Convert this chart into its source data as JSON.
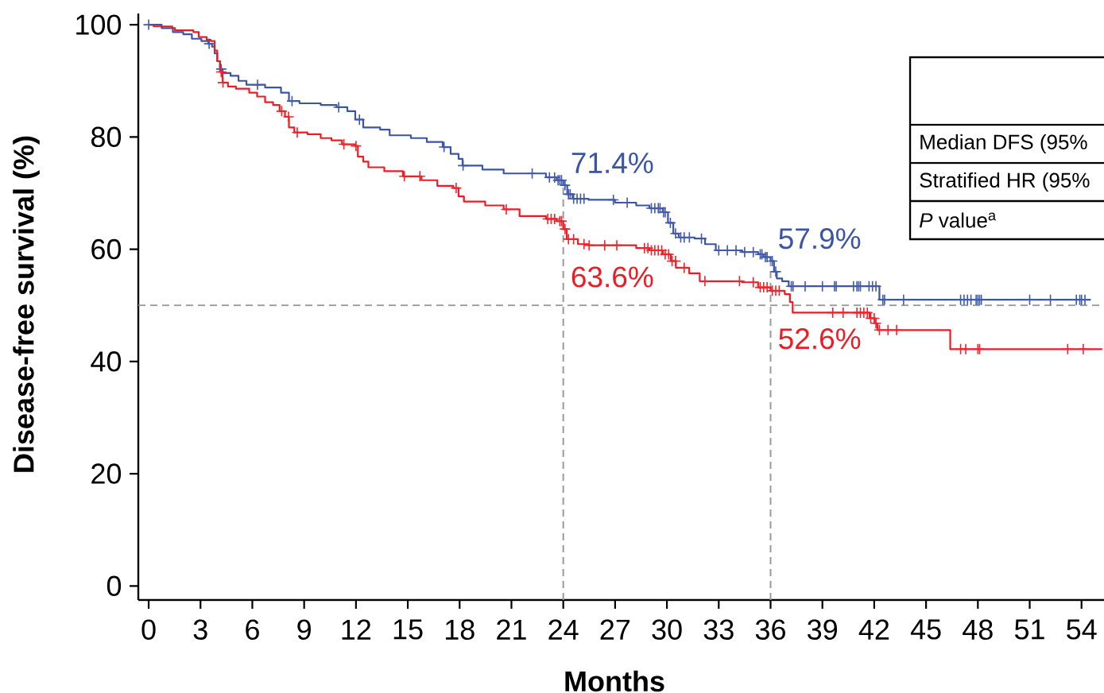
{
  "chart_data": {
    "type": "step",
    "xlabel": "Months",
    "ylabel": "Disease-free survival (%)",
    "xlim": [
      -0.6,
      55.3
    ],
    "ylim": [
      -2.5,
      102
    ],
    "xticks": [
      0,
      3,
      6,
      9,
      12,
      15,
      18,
      21,
      24,
      27,
      30,
      33,
      36,
      39,
      42,
      45,
      48,
      51,
      54
    ],
    "yticks": [
      0,
      20,
      40,
      60,
      80,
      100
    ],
    "series": [
      {
        "color": "#3b54a4",
        "marker": "none",
        "x": [
          0,
          0.75,
          1.4,
          2.0,
          2.5,
          3.05,
          3.45,
          3.67,
          3.82,
          3.97,
          4.13,
          4.28,
          4.74,
          5.2,
          5.66,
          6.74,
          7.66,
          8.12,
          8.73,
          9.96,
          10.88,
          11.5,
          11.96,
          12.42,
          13.4,
          13.95,
          15.18,
          16.1,
          17.02,
          17.48,
          17.94,
          18.17,
          19.32,
          20.55,
          23.0,
          23.62,
          24,
          24.23,
          24.54,
          25.46,
          26.99,
          28.22,
          28.99,
          29.76,
          30.06,
          30.37,
          30.68,
          31.6,
          32.21,
          32.83,
          34.36,
          35.28,
          35.59,
          36,
          36.2,
          36.36,
          36.67,
          37.05,
          42.3,
          54.54
        ],
        "values": [
          100,
          99.4,
          98.7,
          98.3,
          97.5,
          97.1,
          96.6,
          96.1,
          94.9,
          93.5,
          92.1,
          91.4,
          90.9,
          90.0,
          89.3,
          88.8,
          87.9,
          86.4,
          86.0,
          85.7,
          85.3,
          84.6,
          83.1,
          81.7,
          81.3,
          80.3,
          79.8,
          79.1,
          78.2,
          77.0,
          76.1,
          74.9,
          74.2,
          73.5,
          72.8,
          72.3,
          71.4,
          69.8,
          69.0,
          68.8,
          68.3,
          67.8,
          67.3,
          66.6,
          64.7,
          62.8,
          62.1,
          61.9,
          60.9,
          59.8,
          59.5,
          59.1,
          58.6,
          57.9,
          56.0,
          54.8,
          54.3,
          53.4,
          51.0,
          51.0
        ],
        "value_labels": [
          null,
          null,
          null,
          null,
          null,
          null,
          null,
          null,
          null,
          null,
          null,
          null,
          null,
          null,
          null,
          null,
          null,
          null,
          null,
          null,
          null,
          null,
          null,
          null,
          null,
          null,
          null,
          null,
          null,
          null,
          null,
          null,
          null,
          null,
          null,
          null,
          "71.4%",
          null,
          null,
          null,
          null,
          null,
          null,
          null,
          null,
          null,
          null,
          null,
          null,
          null,
          null,
          null,
          null,
          "57.9%",
          null,
          null,
          null,
          null,
          null,
          null
        ]
      },
      {
        "color": "#ed1c24",
        "marker": "none",
        "x": [
          0,
          0.29,
          1.37,
          1.52,
          2.59,
          2.9,
          3.36,
          3.59,
          3.82,
          3.97,
          4.13,
          4.28,
          4.59,
          5.05,
          5.82,
          6.28,
          6.74,
          7.2,
          7.58,
          7.89,
          8.12,
          8.43,
          9.19,
          9.96,
          10.58,
          11.19,
          11.96,
          12.11,
          12.42,
          12.72,
          13.64,
          14.72,
          15.79,
          16.71,
          17.63,
          17.94,
          18.25,
          19.48,
          20.55,
          21.47,
          23.0,
          23.62,
          24,
          24.2,
          24.85,
          25.46,
          28.22,
          28.99,
          29.76,
          30.22,
          30.52,
          31.29,
          31.9,
          34.36,
          35.28,
          36,
          36.82,
          37.12,
          37.28,
          41.73,
          42.03,
          42.19,
          46.4,
          55.2
        ],
        "values": [
          100,
          99.7,
          99.4,
          99.0,
          98.7,
          97.8,
          97.3,
          97.1,
          95.4,
          93.5,
          91.6,
          89.7,
          89.0,
          88.6,
          87.9,
          87.2,
          86.2,
          85.7,
          84.6,
          83.6,
          81.7,
          80.8,
          80.5,
          79.8,
          79.4,
          78.7,
          78.4,
          76.5,
          75.6,
          74.6,
          73.9,
          73.0,
          72.3,
          71.3,
          70.9,
          69.4,
          68.5,
          67.8,
          67.1,
          65.9,
          65.4,
          65.0,
          63.6,
          61.8,
          60.9,
          60.7,
          60.2,
          59.8,
          59.1,
          57.9,
          56.7,
          55.7,
          54.3,
          54.1,
          53.2,
          52.6,
          52.0,
          50.6,
          48.7,
          47.7,
          46.8,
          45.6,
          42.2,
          42.2
        ],
        "value_labels": [
          null,
          null,
          null,
          null,
          null,
          null,
          null,
          null,
          null,
          null,
          null,
          null,
          null,
          null,
          null,
          null,
          null,
          null,
          null,
          null,
          null,
          null,
          null,
          null,
          null,
          null,
          null,
          null,
          null,
          null,
          null,
          null,
          null,
          null,
          null,
          null,
          null,
          null,
          null,
          null,
          null,
          null,
          "63.6%",
          null,
          null,
          null,
          null,
          null,
          null,
          null,
          null,
          null,
          null,
          null,
          null,
          "52.6%",
          null,
          null,
          null,
          null,
          null,
          null,
          null,
          null
        ]
      },
      {
        "type": "scatter",
        "color": "#4159aa",
        "marker": "cross",
        "x": [
          0,
          3.5,
          4.2,
          6.3,
          8.3,
          11.0,
          12.2,
          17.1,
          18.2,
          22.2,
          23.2,
          23.5,
          23.7,
          23.8,
          23.9,
          24.1,
          24.3,
          24.4,
          24.6,
          24.8,
          25.0,
          25.2,
          26.9,
          27.7,
          29.1,
          29.3,
          29.5,
          29.6,
          29.8,
          29.9,
          30.2,
          30.5,
          30.8,
          31.0,
          31.3,
          32.0,
          33.0,
          33.5,
          34.0,
          34.5,
          35.0,
          35.4,
          35.5,
          35.7,
          35.8,
          36.1,
          36.3,
          37.2,
          37.3,
          38.0,
          39.0,
          39.7,
          39.8,
          40.8,
          41.0,
          41.1,
          41.2,
          41.7,
          41.9,
          42.1,
          42.5,
          42.6,
          43.7,
          47.0,
          47.2,
          47.4,
          47.6,
          47.9,
          48.0,
          48.1,
          48.2,
          51.0,
          52.2,
          53.7,
          53.9,
          54.0,
          54.2
        ],
        "values": [
          100,
          96.6,
          92.1,
          89.3,
          86.4,
          85.3,
          83.1,
          78.2,
          74.9,
          73.5,
          72.8,
          72.8,
          72.3,
          72.3,
          72.3,
          71.4,
          69.8,
          69.8,
          69.0,
          69.0,
          69.0,
          69.0,
          68.8,
          68.3,
          67.3,
          67.3,
          67.3,
          67.3,
          66.6,
          66.6,
          64.7,
          62.8,
          62.1,
          62.1,
          62.1,
          61.9,
          59.8,
          59.8,
          59.8,
          59.5,
          59.5,
          59.1,
          59.1,
          58.6,
          58.6,
          57.9,
          56.0,
          53.4,
          53.4,
          53.4,
          53.4,
          53.4,
          53.4,
          53.4,
          53.4,
          53.4,
          53.4,
          53.4,
          53.4,
          53.4,
          51.0,
          51.0,
          51.0,
          51.0,
          51.0,
          51.0,
          51.0,
          51.0,
          51.0,
          51.0,
          51.0,
          51.0,
          51.0,
          51.0,
          51.0,
          51.0,
          51.0
        ]
      },
      {
        "type": "scatter",
        "color": "#f1232b",
        "marker": "cross",
        "x": [
          4.2,
          4.3,
          7.7,
          8.1,
          8.6,
          11.3,
          12.0,
          14.8,
          15.7,
          17.8,
          20.7,
          23.1,
          23.3,
          23.5,
          23.8,
          23.9,
          24.1,
          24.3,
          24.6,
          25.2,
          25.5,
          26.4,
          27.1,
          28.7,
          28.9,
          29.1,
          29.3,
          29.5,
          29.7,
          29.9,
          30.1,
          30.3,
          30.5,
          31.0,
          32.2,
          34.2,
          35.0,
          35.4,
          35.6,
          35.8,
          36.1,
          36.3,
          36.5,
          39.6,
          40.2,
          41.0,
          41.2,
          41.4,
          41.6,
          41.8,
          42.0,
          42.1,
          42.3,
          42.8,
          43.3,
          47.0,
          47.3,
          48.0,
          48.1,
          53.2,
          54.1
        ],
        "values": [
          91.6,
          89.7,
          84.6,
          83.6,
          80.8,
          78.7,
          78.4,
          73.0,
          73.0,
          70.9,
          67.1,
          65.4,
          65.4,
          65.4,
          65.0,
          65.0,
          63.6,
          61.8,
          61.8,
          60.9,
          60.7,
          60.7,
          60.7,
          60.2,
          60.2,
          59.8,
          59.8,
          59.8,
          59.8,
          59.1,
          59.1,
          57.9,
          57.9,
          56.7,
          54.3,
          54.3,
          54.1,
          53.2,
          53.2,
          53.2,
          52.6,
          52.6,
          52.6,
          48.7,
          48.7,
          48.7,
          48.7,
          48.7,
          48.7,
          47.7,
          47.7,
          46.8,
          45.6,
          45.6,
          45.6,
          42.2,
          42.2,
          42.2,
          42.2,
          42.2,
          42.2
        ]
      }
    ],
    "ref_lines": [
      {
        "axis": "x",
        "value": 24,
        "color": "#9a9a9a",
        "line_style": "dashed"
      },
      {
        "axis": "x",
        "value": 36,
        "color": "#9a9a9a",
        "line_style": "dashed"
      },
      {
        "axis": "y",
        "value": 50,
        "color": "#9a9a9a",
        "line_style": "dashed"
      }
    ],
    "annotations": [
      "Median DFS (95%",
      "Stratified HR (95%",
      "*P* value$^{a}$"
    ]
  }
}
